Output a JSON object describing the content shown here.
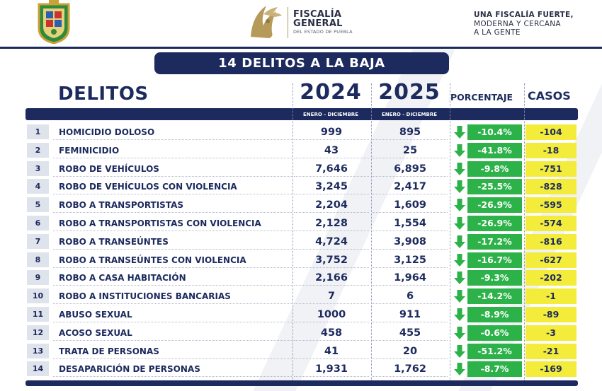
{
  "header": {
    "org_title_line1": "FISCALÍA",
    "org_title_line2": "GENERAL",
    "org_subtitle": "DEL ESTADO DE PUEBLA",
    "slogan_line1": "UNA FISCALÍA FUERTE,",
    "slogan_line2": "MODERNA Y CERCANA",
    "slogan_line3": "A LA GENTE"
  },
  "banner": "14 DELITOS A LA BAJA",
  "columns": {
    "delitos": "DELITOS",
    "year1": "2024",
    "year1_sub": "ENERO - DICIEMBRE",
    "year2": "2025",
    "year2_sub": "ENERO - DICIEMBRE",
    "porcentaje": "PORCENTAJE",
    "casos": "CASOS"
  },
  "colors": {
    "navy": "#1c2a5e",
    "green": "#2db24a",
    "yellow": "#f4ec3b",
    "gold": "#b59a5a"
  },
  "icons": {
    "trend": "arrow-down-icon"
  },
  "rows": [
    {
      "num": "1",
      "name": "HOMICIDIO DOLOSO",
      "v2024": "999",
      "v2025": "895",
      "pct": "-10.4%",
      "casos": "-104"
    },
    {
      "num": "2",
      "name": "FEMINICIDIO",
      "v2024": "43",
      "v2025": "25",
      "pct": "-41.8%",
      "casos": "-18"
    },
    {
      "num": "3",
      "name": "ROBO DE VEHÍCULOS",
      "v2024": "7,646",
      "v2025": "6,895",
      "pct": "-9.8%",
      "casos": "-751"
    },
    {
      "num": "4",
      "name": "ROBO DE VEHÍCULOS CON VIOLENCIA",
      "v2024": "3,245",
      "v2025": "2,417",
      "pct": "-25.5%",
      "casos": "-828"
    },
    {
      "num": "5",
      "name": "ROBO A TRANSPORTISTAS",
      "v2024": "2,204",
      "v2025": "1,609",
      "pct": "-26.9%",
      "casos": "-595"
    },
    {
      "num": "6",
      "name": "ROBO A TRANSPORTISTAS CON VIOLENCIA",
      "v2024": "2,128",
      "v2025": "1,554",
      "pct": "-26.9%",
      "casos": "-574"
    },
    {
      "num": "7",
      "name": "ROBO A TRANSEÚNTES",
      "v2024": "4,724",
      "v2025": "3,908",
      "pct": "-17.2%",
      "casos": "-816"
    },
    {
      "num": "8",
      "name": "ROBO A TRANSEÚNTES CON VIOLENCIA",
      "v2024": "3,752",
      "v2025": "3,125",
      "pct": "-16.7%",
      "casos": "-627"
    },
    {
      "num": "9",
      "name": "ROBO A CASA HABITACIÓN",
      "v2024": "2,166",
      "v2025": "1,964",
      "pct": "-9.3%",
      "casos": "-202"
    },
    {
      "num": "10",
      "name": "ROBO A INSTITUCIONES BANCARIAS",
      "v2024": "7",
      "v2025": "6",
      "pct": "-14.2%",
      "casos": "-1"
    },
    {
      "num": "11",
      "name": "ABUSO SEXUAL",
      "v2024": "1000",
      "v2025": "911",
      "pct": "-8.9%",
      "casos": "-89"
    },
    {
      "num": "12",
      "name": "ACOSO SEXUAL",
      "v2024": "458",
      "v2025": "455",
      "pct": "-0.6%",
      "casos": "-3"
    },
    {
      "num": "13",
      "name": "TRATA DE PERSONAS",
      "v2024": "41",
      "v2025": "20",
      "pct": "-51.2%",
      "casos": "-21"
    },
    {
      "num": "14",
      "name": "DESAPARICIÓN DE PERSONAS",
      "v2024": "1,931",
      "v2025": "1,762",
      "pct": "-8.7%",
      "casos": "-169"
    }
  ]
}
